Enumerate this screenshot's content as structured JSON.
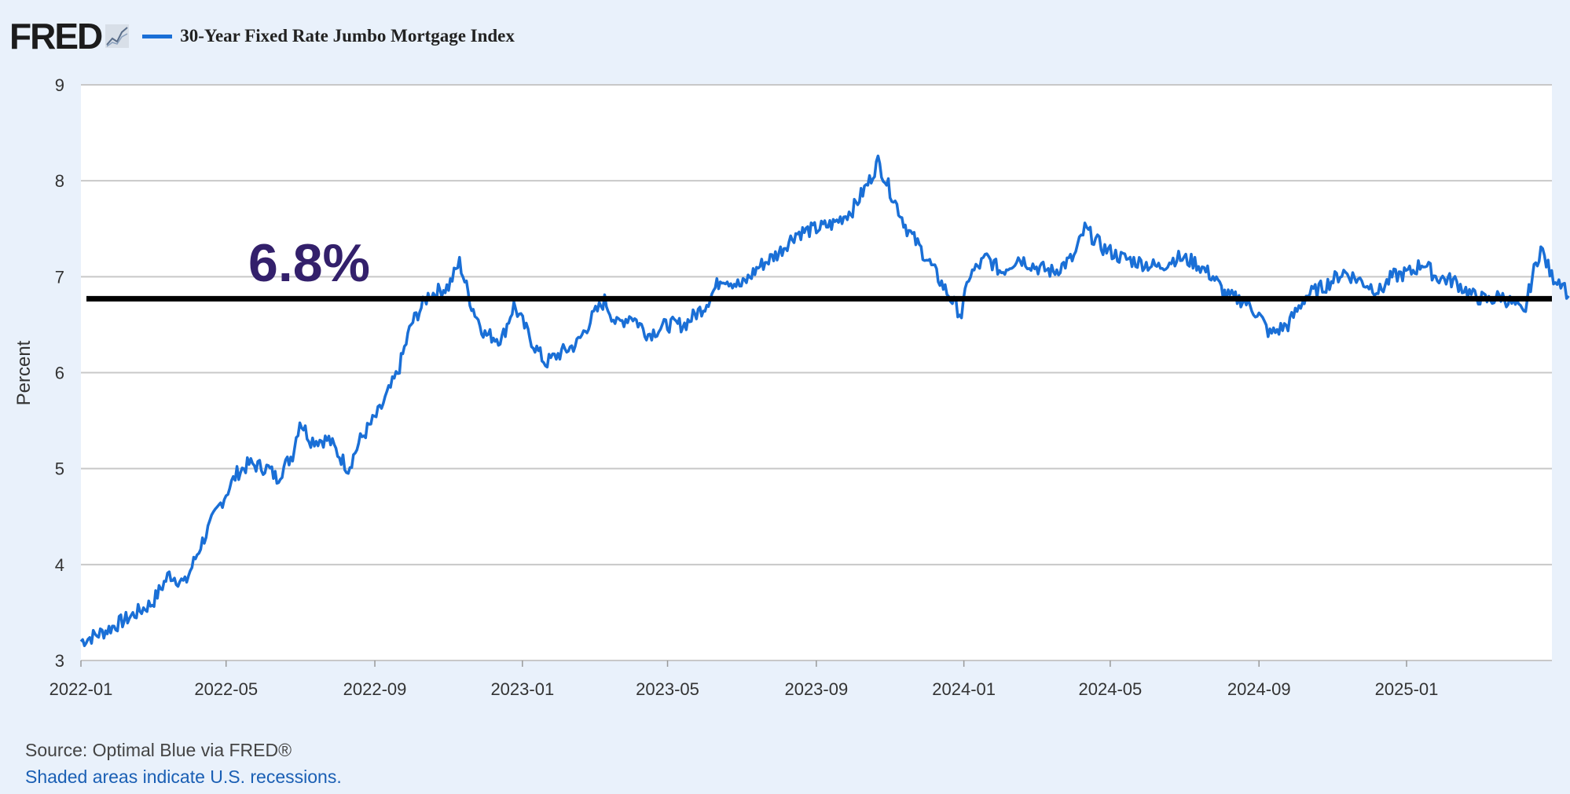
{
  "header": {
    "logo": "FRED",
    "series_title": "30-Year Fixed Rate Jumbo Mortgage Index"
  },
  "chart_data": {
    "type": "line",
    "ylabel": "Percent",
    "ylim": [
      3,
      9
    ],
    "yticks": [
      "3",
      "4",
      "5",
      "6",
      "7",
      "8",
      "9"
    ],
    "xticks": [
      "2022-01",
      "2022-05",
      "2022-09",
      "2023-01",
      "2023-05",
      "2023-09",
      "2024-01",
      "2024-05",
      "2024-09",
      "2025-01"
    ],
    "xlim": [
      "2022-01-01",
      "2025-05-15"
    ],
    "grid": true,
    "series": [
      {
        "name": "30-Year Fixed Rate Jumbo Mortgage Index",
        "color": "#1a6fd6",
        "points": [
          [
            "2022-01-01",
            3.2
          ],
          [
            "2022-01-20",
            3.3
          ],
          [
            "2022-02-10",
            3.45
          ],
          [
            "2022-03-01",
            3.6
          ],
          [
            "2022-03-15",
            3.9
          ],
          [
            "2022-03-28",
            3.8
          ],
          [
            "2022-04-10",
            4.2
          ],
          [
            "2022-04-25",
            4.6
          ],
          [
            "2022-05-10",
            4.95
          ],
          [
            "2022-05-20",
            5.05
          ],
          [
            "2022-06-05",
            5.0
          ],
          [
            "2022-06-12",
            4.9
          ],
          [
            "2022-06-25",
            5.15
          ],
          [
            "2022-07-01",
            5.5
          ],
          [
            "2022-07-10",
            5.3
          ],
          [
            "2022-07-25",
            5.3
          ],
          [
            "2022-08-10",
            5.0
          ],
          [
            "2022-08-20",
            5.3
          ],
          [
            "2022-09-05",
            5.6
          ],
          [
            "2022-09-20",
            6.0
          ],
          [
            "2022-10-01",
            6.5
          ],
          [
            "2022-10-15",
            6.8
          ],
          [
            "2022-11-01",
            6.9
          ],
          [
            "2022-11-10",
            7.15
          ],
          [
            "2022-11-20",
            6.7
          ],
          [
            "2022-12-01",
            6.4
          ],
          [
            "2022-12-15",
            6.35
          ],
          [
            "2022-12-25",
            6.7
          ],
          [
            "2023-01-10",
            6.3
          ],
          [
            "2023-01-20",
            6.1
          ],
          [
            "2023-02-01",
            6.2
          ],
          [
            "2023-02-15",
            6.3
          ],
          [
            "2023-03-01",
            6.6
          ],
          [
            "2023-03-10",
            6.75
          ],
          [
            "2023-03-20",
            6.5
          ],
          [
            "2023-04-01",
            6.6
          ],
          [
            "2023-04-15",
            6.4
          ],
          [
            "2023-05-01",
            6.5
          ],
          [
            "2023-05-15",
            6.5
          ],
          [
            "2023-06-01",
            6.7
          ],
          [
            "2023-06-15",
            7.0
          ],
          [
            "2023-07-01",
            6.9
          ],
          [
            "2023-07-15",
            7.1
          ],
          [
            "2023-08-01",
            7.25
          ],
          [
            "2023-08-15",
            7.45
          ],
          [
            "2023-09-01",
            7.5
          ],
          [
            "2023-09-15",
            7.55
          ],
          [
            "2023-10-01",
            7.7
          ],
          [
            "2023-10-15",
            8.0
          ],
          [
            "2023-10-22",
            8.2
          ],
          [
            "2023-11-01",
            7.9
          ],
          [
            "2023-11-15",
            7.5
          ],
          [
            "2023-12-01",
            7.2
          ],
          [
            "2023-12-15",
            6.9
          ],
          [
            "2023-12-30",
            6.6
          ],
          [
            "2024-01-05",
            7.0
          ],
          [
            "2024-01-20",
            7.2
          ],
          [
            "2024-02-01",
            7.05
          ],
          [
            "2024-02-15",
            7.2
          ],
          [
            "2024-03-01",
            7.1
          ],
          [
            "2024-03-15",
            7.05
          ],
          [
            "2024-04-01",
            7.2
          ],
          [
            "2024-04-10",
            7.5
          ],
          [
            "2024-04-25",
            7.3
          ],
          [
            "2024-05-10",
            7.2
          ],
          [
            "2024-05-25",
            7.15
          ],
          [
            "2024-06-10",
            7.1
          ],
          [
            "2024-06-25",
            7.2
          ],
          [
            "2024-07-10",
            7.15
          ],
          [
            "2024-07-25",
            7.0
          ],
          [
            "2024-08-05",
            6.8
          ],
          [
            "2024-08-20",
            6.75
          ],
          [
            "2024-09-01",
            6.6
          ],
          [
            "2024-09-10",
            6.4
          ],
          [
            "2024-09-25",
            6.5
          ],
          [
            "2024-10-10",
            6.8
          ],
          [
            "2024-10-25",
            6.9
          ],
          [
            "2024-11-10",
            7.05
          ],
          [
            "2024-11-25",
            6.95
          ],
          [
            "2024-12-10",
            6.85
          ],
          [
            "2024-12-20",
            7.0
          ],
          [
            "2025-01-05",
            7.05
          ],
          [
            "2025-01-15",
            7.15
          ],
          [
            "2025-01-25",
            7.0
          ],
          [
            "2025-02-10",
            6.95
          ],
          [
            "2025-02-25",
            6.8
          ],
          [
            "2025-03-10",
            6.75
          ],
          [
            "2025-03-20",
            6.8
          ],
          [
            "2025-04-01",
            6.7
          ],
          [
            "2025-04-08",
            6.6
          ],
          [
            "2025-04-15",
            7.0
          ],
          [
            "2025-04-22",
            7.3
          ],
          [
            "2025-05-01",
            7.0
          ],
          [
            "2025-05-10",
            6.95
          ],
          [
            "2025-05-15",
            6.8
          ]
        ]
      }
    ],
    "reference_line": {
      "value": 6.77,
      "color": "#000000"
    },
    "annotation": "6.8%"
  },
  "footer": {
    "source": "Source: Optimal Blue via FRED®",
    "recession_note": "Shaded areas indicate U.S. recessions."
  }
}
